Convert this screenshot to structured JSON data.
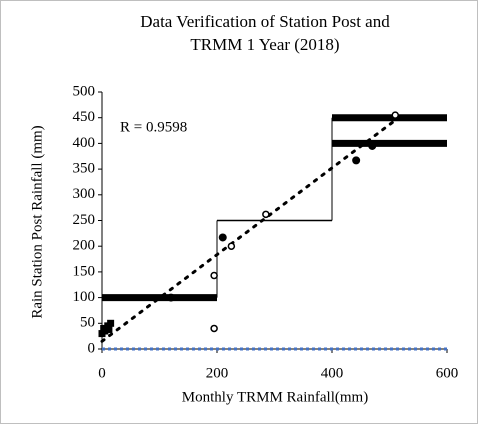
{
  "chart_data": {
    "type": "scatter",
    "title": [
      "Data Verification of Station Post and",
      "TRMM 1 Year (2018)"
    ],
    "x_label": "Monthly TRMM Rainfall(mm)",
    "y_label": "Rain Station Post Rainfall (mm)",
    "annotation": "R = 0.9598",
    "xlim": [
      0,
      600
    ],
    "xticks": [
      0,
      200,
      400,
      600
    ],
    "ylim": [
      0,
      500
    ],
    "yticks": [
      0,
      50,
      100,
      150,
      200,
      250,
      300,
      350,
      400,
      450,
      500
    ],
    "series": [
      {
        "marker": "filled-circle",
        "color": "#000000",
        "x": [
          120,
          210,
          442,
          470
        ],
        "y": [
          100,
          217,
          367,
          395
        ]
      },
      {
        "marker": "open-circle",
        "color": "#000000",
        "x": [
          195,
          195,
          285,
          510,
          225
        ],
        "y": [
          40,
          143,
          262,
          455,
          200
        ]
      },
      {
        "marker": "square",
        "color": "#000000",
        "x": [
          0,
          3,
          5,
          10,
          12,
          15
        ],
        "y": [
          30,
          40,
          35,
          45,
          38,
          50
        ]
      }
    ],
    "segments": [
      {
        "x": [
          0,
          200
        ],
        "y": 100,
        "weight": "thick"
      },
      {
        "x": [
          200,
          400
        ],
        "y": 250,
        "weight": "thin"
      },
      {
        "x": [
          400,
          600
        ],
        "y": 450,
        "weight": "thick"
      },
      {
        "x": [
          400,
          600
        ],
        "y": 400,
        "weight": "thick"
      }
    ],
    "verticals": [
      {
        "x": 200,
        "y": [
          100,
          250
        ]
      },
      {
        "x": 400,
        "y": [
          250,
          450
        ]
      }
    ],
    "trendline": {
      "color": "#000000",
      "x": [
        0,
        510
      ],
      "y": [
        15,
        445
      ]
    },
    "baseline": {
      "color": "#4472c4",
      "x": [
        0,
        600
      ],
      "y": 0
    }
  }
}
